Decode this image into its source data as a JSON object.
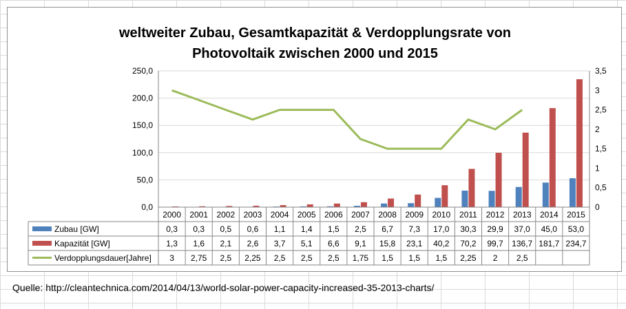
{
  "source": {
    "label": "Quelle: http://cleantechnica.com/2014/04/13/world-solar-power-capacity-increased-35-2013-charts/"
  },
  "colors": {
    "zubau": "#4f81bd",
    "kapazitaet": "#c0504d",
    "verdopplung": "#9bbb59",
    "grid": "#d9d9d9",
    "axis": "#868686"
  },
  "chart_data": {
    "type": "bar",
    "title_lines": [
      "weltweiter Zubau, Gesamtkapazität & Verdopplungsrate von",
      "Photovoltaik zwischen 2000 und 2015"
    ],
    "categories": [
      "2000",
      "2001",
      "2002",
      "2003",
      "2004",
      "2005",
      "2006",
      "2007",
      "2008",
      "2009",
      "2010",
      "2011",
      "2012",
      "2013",
      "2014",
      "2015"
    ],
    "series": [
      {
        "name": "Zubau [GW]",
        "kind": "bar",
        "axis": "left",
        "values": [
          0.3,
          0.3,
          0.5,
          0.6,
          1.1,
          1.4,
          1.5,
          2.5,
          6.7,
          7.3,
          17.0,
          30.3,
          29.9,
          37.0,
          45.0,
          53.0
        ],
        "labels": [
          "0,3",
          "0,3",
          "0,5",
          "0,6",
          "1,1",
          "1,4",
          "1,5",
          "2,5",
          "6,7",
          "7,3",
          "17,0",
          "30,3",
          "29,9",
          "37,0",
          "45,0",
          "53,0"
        ]
      },
      {
        "name": "Kapazität [GW]",
        "kind": "bar",
        "axis": "left",
        "values": [
          1.3,
          1.6,
          2.1,
          2.6,
          3.7,
          5.1,
          6.6,
          9.1,
          15.8,
          23.1,
          40.2,
          70.2,
          99.7,
          136.7,
          181.7,
          234.7
        ],
        "labels": [
          "1,3",
          "1,6",
          "2,1",
          "2,6",
          "3,7",
          "5,1",
          "6,6",
          "9,1",
          "15,8",
          "23,1",
          "40,2",
          "70,2",
          "99,7",
          "136,7",
          "181,7",
          "234,7"
        ]
      },
      {
        "name": "Verdopplungsdauer[Jahre]",
        "kind": "line",
        "axis": "right",
        "values": [
          3,
          2.75,
          2.5,
          2.25,
          2.5,
          2.5,
          2.5,
          1.75,
          1.5,
          1.5,
          1.5,
          2.25,
          2,
          2.5,
          null,
          null
        ],
        "labels": [
          "3",
          "2,75",
          "2,5",
          "2,25",
          "2,5",
          "2,5",
          "2,5",
          "1,75",
          "1,5",
          "1,5",
          "1,5",
          "2,25",
          "2",
          "2,5",
          "",
          ""
        ]
      }
    ],
    "y_left": {
      "min": 0,
      "max": 250,
      "ticks": [
        "0,0",
        "50,0",
        "100,0",
        "150,0",
        "200,0",
        "250,0"
      ]
    },
    "y_right": {
      "min": 0,
      "max": 3.5,
      "ticks": [
        "0",
        "0,5",
        "1",
        "1,5",
        "2",
        "2,5",
        "3",
        "3,5"
      ]
    },
    "grid": true,
    "legend": "data-table"
  }
}
